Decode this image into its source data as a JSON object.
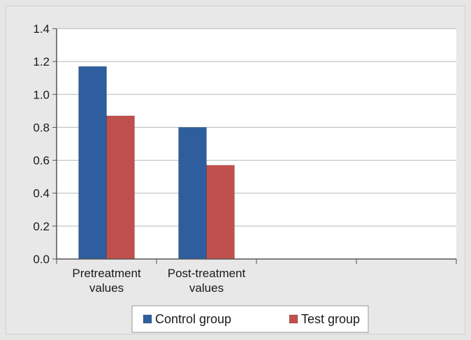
{
  "chart_data": {
    "type": "bar",
    "categories": [
      [
        "Pretreatment",
        "values"
      ],
      [
        "Post-treatment",
        "values"
      ],
      [
        ""
      ],
      [
        ""
      ]
    ],
    "series": [
      {
        "name": "Control group",
        "values": [
          1.17,
          0.8,
          null,
          null
        ],
        "color": "#2e5e9e"
      },
      {
        "name": "Test group",
        "values": [
          0.87,
          0.57,
          null,
          null
        ],
        "color": "#c0504d"
      }
    ],
    "yticks": [
      "0.0",
      "0.2",
      "0.4",
      "0.6",
      "0.8",
      "1.0",
      "1.2",
      "1.4"
    ],
    "ylim": [
      0,
      1.4
    ],
    "grid": true,
    "legend_position": "bottom",
    "plot_background": "#ffffff",
    "grid_color": "#b8b8b8"
  }
}
